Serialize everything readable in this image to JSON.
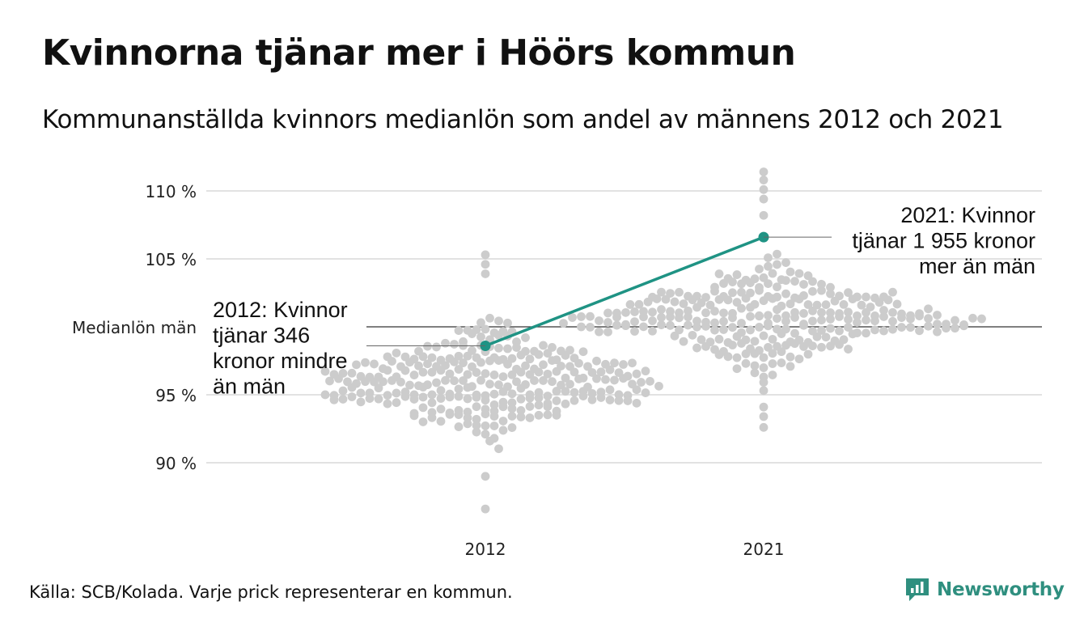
{
  "header": {
    "title": "Kvinnorna tjänar mer i Höörs kommun",
    "subtitle": "Kommunanställda kvinnors medianlön som andel av männens 2012 och 2021"
  },
  "footer": {
    "source": "Källa: SCB/Kolada. Varje prick representerar en kommun.",
    "brand": "Newsworthy",
    "brand_icon": "newsworthy-logo-icon"
  },
  "colors": {
    "highlight": "#1f9384",
    "dots": "#cccccc",
    "grid": "#e2e2e2",
    "reference_line": "#333333",
    "brand": "#2f8f7f"
  },
  "chart_data": {
    "type": "scatter",
    "subtype": "beeswarm",
    "categories": [
      "2012",
      "2021"
    ],
    "y_ticks": [
      {
        "value": 90,
        "label": "90 %"
      },
      {
        "value": 95,
        "label": "95 %"
      },
      {
        "value": 105,
        "label": "105 %"
      },
      {
        "value": 110,
        "label": "110 %"
      }
    ],
    "reference_line": {
      "value": 100,
      "label": "Medianlön män"
    },
    "ylim": [
      86,
      112
    ],
    "grid": true,
    "highlight": {
      "values": [
        {
          "category": "2012",
          "value": 98.6
        },
        {
          "category": "2021",
          "value": 106.6
        }
      ]
    },
    "annotations": [
      {
        "category": "2012",
        "lines": [
          "2012: Kvinnor",
          "tjänar 346",
          "kronor mindre",
          "än män"
        ]
      },
      {
        "category": "2021",
        "lines": [
          "2021: Kvinnor",
          "tjänar 1 955 kronor",
          "mer än män"
        ]
      }
    ],
    "distribution": [
      {
        "category": "2012",
        "n": 290,
        "min": 86.6,
        "max": 105.3,
        "center": 96.0,
        "spread": 2.7,
        "extremes": [
          86.6,
          89.0,
          103.9,
          104.6,
          105.3
        ]
      },
      {
        "category": "2021",
        "n": 290,
        "min": 92.6,
        "max": 111.4,
        "center": 100.8,
        "spread": 2.6,
        "extremes": [
          92.6,
          93.4,
          94.1,
          108.2,
          109.4,
          110.1,
          110.8,
          111.4
        ]
      }
    ]
  }
}
